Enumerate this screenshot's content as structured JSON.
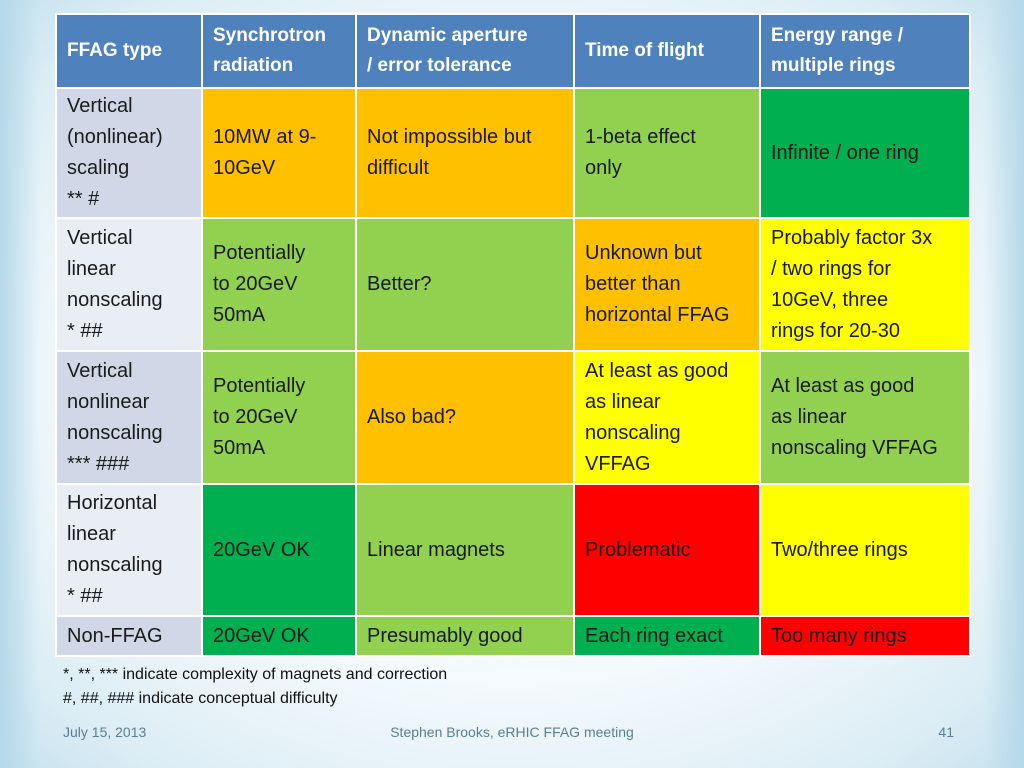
{
  "table": {
    "headers": [
      [
        "FFAG type"
      ],
      [
        "Synchrotron",
        "radiation"
      ],
      [
        "Dynamic aperture",
        "/ error tolerance"
      ],
      [
        "Time of flight"
      ],
      [
        "Energy range /",
        "multiple rings"
      ]
    ],
    "rows": [
      {
        "type": [
          "Vertical",
          "(nonlinear)",
          "scaling",
          "** #"
        ],
        "cells": [
          {
            "lines": [
              "10MW at 9-",
              "10GeV"
            ],
            "color": "#ffc000"
          },
          {
            "lines": [
              "Not impossible but",
              "difficult"
            ],
            "color": "#ffc000"
          },
          {
            "lines": [
              "1-beta effect",
              "only"
            ],
            "color": "#92d050"
          },
          {
            "lines": [
              "Infinite / one ring"
            ],
            "color": "#00b050"
          }
        ]
      },
      {
        "type": [
          "Vertical",
          "linear",
          "nonscaling",
          "* ##"
        ],
        "cells": [
          {
            "lines": [
              "Potentially",
              "to 20GeV",
              "50mA"
            ],
            "color": "#92d050"
          },
          {
            "lines": [
              "Better?"
            ],
            "color": "#92d050"
          },
          {
            "lines": [
              "Unknown but",
              "better than",
              "horizontal FFAG"
            ],
            "color": "#ffc000"
          },
          {
            "lines": [
              "Probably factor 3x",
              "/ two rings for",
              "10GeV, three",
              "rings for 20-30"
            ],
            "color": "#ffff00"
          }
        ]
      },
      {
        "type": [
          "Vertical",
          "nonlinear",
          "nonscaling",
          "*** ###"
        ],
        "cells": [
          {
            "lines": [
              "Potentially",
              "to 20GeV",
              "50mA"
            ],
            "color": "#92d050"
          },
          {
            "lines": [
              "Also bad?"
            ],
            "color": "#ffc000"
          },
          {
            "lines": [
              "At least as good",
              "as linear",
              "nonscaling",
              "VFFAG"
            ],
            "color": "#ffff00"
          },
          {
            "lines": [
              "At least as good",
              "as linear",
              "nonscaling VFFAG"
            ],
            "color": "#92d050"
          }
        ]
      },
      {
        "type": [
          "Horizontal",
          "linear",
          "nonscaling",
          "* ##"
        ],
        "cells": [
          {
            "lines": [
              "20GeV OK"
            ],
            "color": "#00b050"
          },
          {
            "lines": [
              "Linear magnets"
            ],
            "color": "#92d050"
          },
          {
            "lines": [
              "Problematic"
            ],
            "color": "#ff0000"
          },
          {
            "lines": [
              "Two/three rings"
            ],
            "color": "#ffff00"
          }
        ]
      },
      {
        "type": [
          "Non-FFAG"
        ],
        "cells": [
          {
            "lines": [
              "20GeV OK"
            ],
            "color": "#00b050"
          },
          {
            "lines": [
              "Presumably good"
            ],
            "color": "#92d050"
          },
          {
            "lines": [
              "Each ring exact"
            ],
            "color": "#00b050"
          },
          {
            "lines": [
              "Too many rings"
            ],
            "color": "#ff0000"
          }
        ]
      }
    ]
  },
  "footnotes": [
    "*, **, *** indicate complexity of magnets and correction",
    "#, ##, ### indicate conceptual difficulty"
  ],
  "footer": {
    "date": "July 15, 2013",
    "center": "Stephen Brooks, eRHIC FFAG meeting",
    "page": "41"
  },
  "colors": {
    "header": "#4f81bd",
    "orange": "#ffc000",
    "light_green": "#92d050",
    "dark_green": "#00b050",
    "yellow": "#ffff00",
    "red": "#ff0000"
  }
}
